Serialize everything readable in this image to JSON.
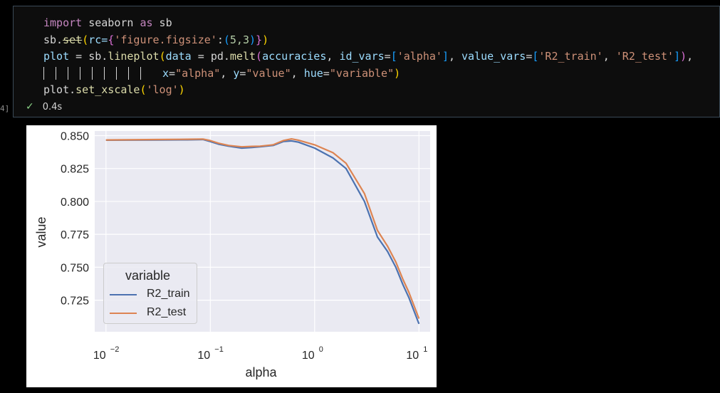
{
  "cell": {
    "execution_count": "4]",
    "code": {
      "line1": {
        "kw1": "import",
        "mod": " seaborn ",
        "kw2": "as",
        "alias": " sb"
      },
      "line2": {
        "obj": "sb.",
        "method": "set",
        "open": "(",
        "arg": "rc=",
        "brace_open": "{",
        "key": "'figure.figsize'",
        "colon": ":",
        "tup_open": "(",
        "tup": "5,3",
        "tup_close": ")",
        "brace_close": "}",
        "close": ")"
      },
      "line3": {
        "lhs": "plot",
        "eq": " = ",
        "obj": "sb.",
        "method": "lineplot",
        "open": "(",
        "param1": "data",
        "eq2": " = ",
        "pd": "pd.",
        "melt": "melt",
        "open2": "(",
        "acc": "accuracies",
        "c1": ", ",
        "param2": "id_vars",
        "eq3": "=",
        "lb1": "[",
        "s1": "'alpha'",
        "rb1": "]",
        "c2": ", ",
        "param3": "value_vars",
        "eq4": "=",
        "lb2": "[",
        "s2": "'R2_train'",
        "c3": ", ",
        "s3": "'R2_test'",
        "rb2": "]",
        "close2": ")",
        "end": ","
      },
      "line4": {
        "p1": "x",
        "e1": "=",
        "s1": "\"alpha\"",
        "c1": ", ",
        "p2": "y",
        "e2": "=",
        "s2": "\"value\"",
        "c2": ", ",
        "p3": "hue",
        "e3": "=",
        "s3": "\"variable\"",
        "close": ")"
      },
      "line5": {
        "obj": "plot.",
        "method": "set_xscale",
        "open": "(",
        "arg": "'log'",
        "close": ")"
      }
    },
    "status": {
      "icon": "check-icon",
      "time": "0.4s"
    }
  },
  "colors": {
    "train": "#4c72b0",
    "test": "#dd8452",
    "axes_bg": "#eaeaf2",
    "grid": "#ffffff"
  },
  "chart_data": {
    "type": "line",
    "xscale": "log",
    "xlabel": "alpha",
    "ylabel": "value",
    "xlim": [
      0.0078,
      0.0128
    ],
    "xtick_values": [
      0.01,
      0.1,
      1,
      10
    ],
    "xtick_bases": [
      "10",
      "10",
      "10",
      "10"
    ],
    "xtick_exps": [
      "−2",
      "−1",
      "0",
      "1"
    ],
    "ytick_values": [
      0.725,
      0.75,
      0.775,
      0.8,
      0.825,
      0.85
    ],
    "ytick_labels": [
      "0.725",
      "0.750",
      "0.775",
      "0.800",
      "0.825",
      "0.850"
    ],
    "ylim": [
      0.701,
      0.8535
    ],
    "grid": true,
    "legend": {
      "title": "variable",
      "placement": "lower left"
    },
    "series": [
      {
        "name": "R2_train",
        "x": [
          0.01,
          0.03,
          0.06,
          0.085,
          0.1,
          0.12,
          0.15,
          0.2,
          0.25,
          0.3,
          0.4,
          0.5,
          0.6,
          0.7,
          1,
          1.5,
          2,
          3,
          4,
          5,
          6,
          7,
          8,
          10
        ],
        "y": [
          0.8465,
          0.8467,
          0.8468,
          0.847,
          0.8455,
          0.8435,
          0.842,
          0.8405,
          0.841,
          0.8415,
          0.8425,
          0.8455,
          0.846,
          0.845,
          0.8405,
          0.833,
          0.825,
          0.8,
          0.773,
          0.762,
          0.75,
          0.737,
          0.727,
          0.707
        ]
      },
      {
        "name": "R2_test",
        "x": [
          0.01,
          0.03,
          0.06,
          0.085,
          0.1,
          0.12,
          0.15,
          0.2,
          0.25,
          0.3,
          0.4,
          0.5,
          0.6,
          0.7,
          1,
          1.5,
          2,
          3,
          4,
          5,
          6,
          7,
          8,
          10
        ],
        "y": [
          0.8467,
          0.847,
          0.8472,
          0.8474,
          0.8462,
          0.8442,
          0.8425,
          0.8415,
          0.8418,
          0.842,
          0.843,
          0.8462,
          0.8475,
          0.8465,
          0.843,
          0.837,
          0.829,
          0.806,
          0.778,
          0.766,
          0.754,
          0.741,
          0.731,
          0.711
        ]
      }
    ]
  }
}
